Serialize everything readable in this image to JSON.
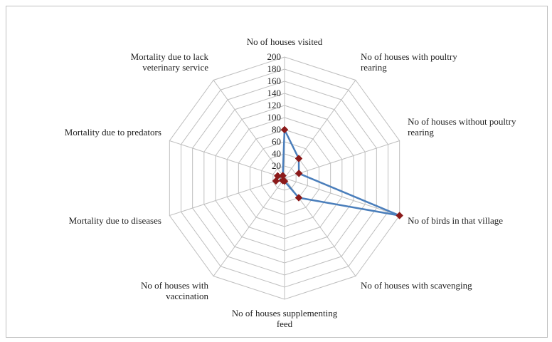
{
  "chart_data": {
    "type": "radar",
    "title": "",
    "categories": [
      "No of houses visited",
      "No of houses with poultry rearing",
      "No of houses without poultry rearing",
      "No of birds in that village",
      "No of houses with scavenging",
      "No of houses supplementing feed",
      "No of houses with vaccination",
      "Mortality due to diseases",
      "Mortality due to predators",
      "Mortality due to lack veterinary service"
    ],
    "category_lines": [
      [
        "No of houses visited"
      ],
      [
        "No of houses with poultry",
        "rearing"
      ],
      [
        "No of houses without poultry",
        "rearing"
      ],
      [
        "No of birds in that village"
      ],
      [
        "No of houses with scavenging"
      ],
      [
        "No of houses supplementing",
        "feed"
      ],
      [
        "No of houses with",
        "vaccination"
      ],
      [
        "Mortality due to diseases"
      ],
      [
        "Mortality due to predators"
      ],
      [
        "Mortality due to lack",
        "veterinary service"
      ]
    ],
    "series": [
      {
        "values": [
          80,
          40,
          25,
          200,
          40,
          5,
          5,
          15,
          12,
          5
        ]
      }
    ],
    "rlim": [
      0,
      200
    ],
    "rticks": [
      0,
      20,
      40,
      60,
      80,
      100,
      120,
      140,
      160,
      180,
      200
    ],
    "grid": true,
    "legend": "none",
    "colors": {
      "line": "#4a7ebb",
      "marker": "#8b1a1a",
      "grid": "#bfbfbf"
    }
  }
}
